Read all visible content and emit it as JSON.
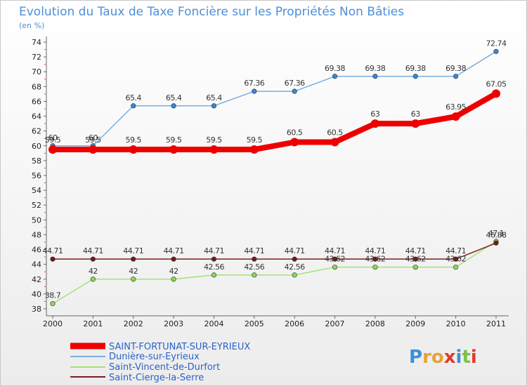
{
  "chart_data": {
    "type": "line",
    "title": "Evolution du Taux de Taxe Foncière sur les Propriétés Non Bâties",
    "ylabel": "(en %)",
    "xlabel": "",
    "ylim": [
      38,
      74
    ],
    "yticks": [
      38,
      40,
      42,
      44,
      46,
      48,
      50,
      52,
      54,
      56,
      58,
      60,
      62,
      64,
      66,
      68,
      70,
      72,
      74
    ],
    "categories": [
      "2000",
      "2001",
      "2002",
      "2003",
      "2004",
      "2005",
      "2006",
      "2007",
      "2008",
      "2009",
      "2010",
      "2011"
    ],
    "grid": false,
    "legend_position": "bottom-left",
    "series": [
      {
        "name": "Dunière-sur-Eyrieux",
        "color": "#7aaee0",
        "marker": "#3a86d4",
        "values": [
          60,
          60,
          65.4,
          65.4,
          65.4,
          67.36,
          67.36,
          69.38,
          69.38,
          69.38,
          69.38,
          72.74
        ],
        "labels": [
          "60",
          "60",
          "65.4",
          "65.4",
          "65.4",
          "67.36",
          "67.36",
          "69.38",
          "69.38",
          "69.38",
          "69.38",
          "72.74"
        ]
      },
      {
        "name": "SAINT-FORTUNAT-SUR-EYRIEUX",
        "color": "#ee0000",
        "marker": "#ee0000",
        "values": [
          59.5,
          59.5,
          59.5,
          59.5,
          59.5,
          59.5,
          60.5,
          60.5,
          63,
          63,
          63.95,
          67.05
        ],
        "labels": [
          "59.5",
          "59.5",
          "59.5",
          "59.5",
          "59.5",
          "59.5",
          "60.5",
          "60.5",
          "63",
          "63",
          "63.95",
          "67.05"
        ]
      },
      {
        "name": "Saint-Cierge-la-Serre",
        "color": "#7a1f1f",
        "marker": "#6e1b1b",
        "values": [
          44.71,
          44.71,
          44.71,
          44.71,
          44.71,
          44.71,
          44.71,
          44.71,
          44.71,
          44.71,
          44.71,
          46.88
        ],
        "labels": [
          "44.71",
          "44.71",
          "44.71",
          "44.71",
          "44.71",
          "44.71",
          "44.71",
          "44.71",
          "44.71",
          "44.71",
          "44.71",
          "46.88"
        ]
      },
      {
        "name": "Saint-Vincent-de-Durfort",
        "color": "#a8e07a",
        "marker": "#8fd45a",
        "values": [
          38.7,
          42,
          42,
          42,
          42.56,
          42.56,
          42.56,
          43.62,
          43.62,
          43.62,
          43.62,
          47.1
        ],
        "labels": [
          "38.7",
          "42",
          "42",
          "42",
          "42.56",
          "42.56",
          "42.56",
          "43.62",
          "43.62",
          "43.62",
          "43.62",
          "47.1"
        ]
      }
    ],
    "legend": [
      "SAINT-FORTUNAT-SUR-EYRIEUX",
      "Dunière-sur-Eyrieux",
      "Saint-Vincent-de-Durfort",
      "Saint-Cierge-la-Serre"
    ]
  },
  "brand": {
    "letters": [
      "P",
      "r",
      "o",
      "x",
      "i",
      "t",
      "i"
    ],
    "colors": [
      "#3b8fd8",
      "#e8a23a",
      "#e8a23a",
      "#e03a2a",
      "#3b8fd8",
      "#7cc04a",
      "#e03a2a"
    ]
  }
}
